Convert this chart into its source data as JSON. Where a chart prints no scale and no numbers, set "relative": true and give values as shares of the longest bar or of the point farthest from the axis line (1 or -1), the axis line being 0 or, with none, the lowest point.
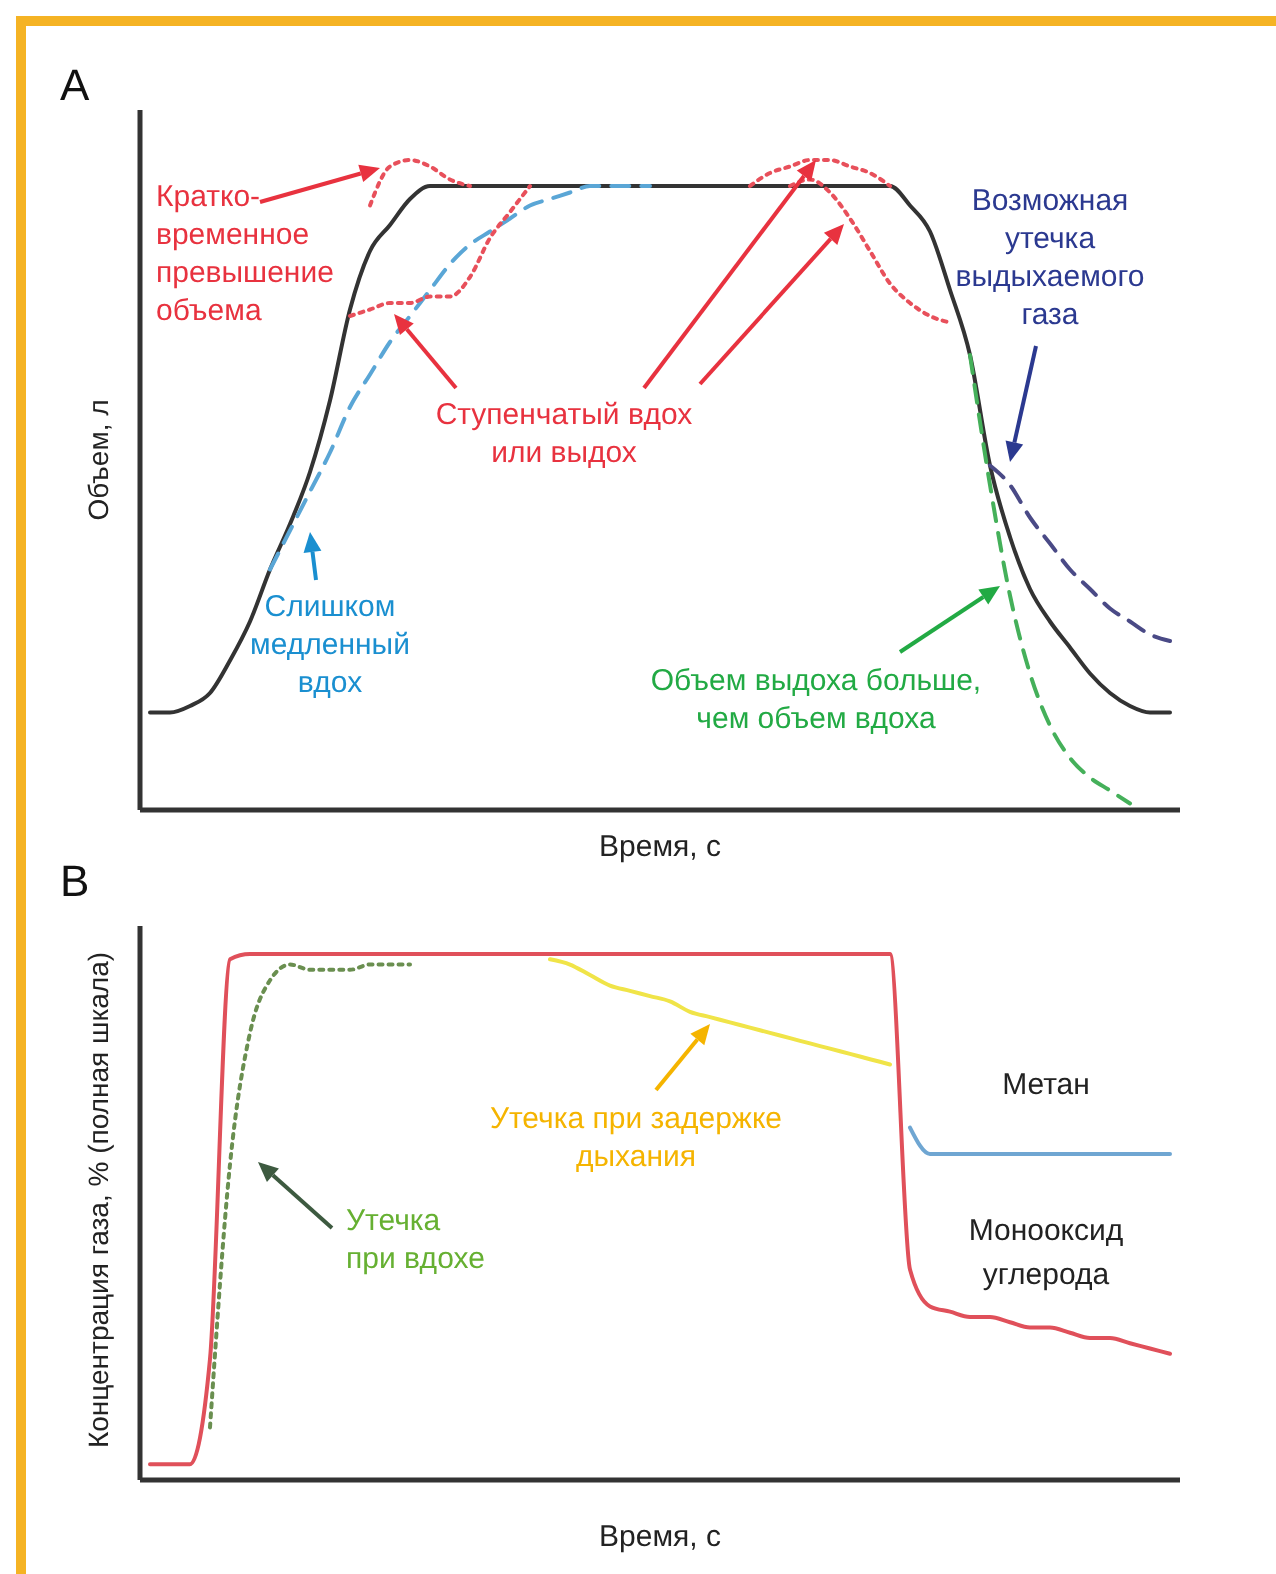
{
  "chart_data": [
    {
      "type": "line",
      "title": "А",
      "xlabel": "Время, с",
      "ylabel": "Объем, л",
      "relative": true,
      "tick_labels": false,
      "categories": [
        null,
        null,
        null,
        null,
        null,
        null,
        null,
        null,
        null,
        null,
        null,
        null,
        null,
        null,
        null,
        null,
        null,
        null,
        null,
        null,
        null,
        null,
        null,
        null,
        null,
        null,
        null,
        null,
        null,
        null,
        null,
        null,
        null,
        null,
        null,
        null,
        null,
        null,
        null,
        null,
        null,
        null,
        null,
        null,
        null,
        null,
        null,
        null,
        null,
        null,
        null,
        null
      ],
      "series": [
        {
          "color": "#333333",
          "line_style": "solid",
          "values": [
            0.15,
            0.15,
            0.16,
            0.18,
            0.23,
            0.29,
            0.37,
            0.44,
            0.52,
            0.63,
            0.77,
            0.86,
            0.9,
            0.94,
            0.96,
            0.96,
            0.96,
            0.96,
            0.96,
            0.96,
            0.96,
            0.96,
            0.96,
            0.96,
            0.96,
            0.96,
            0.96,
            0.96,
            0.96,
            0.96,
            0.96,
            0.96,
            0.96,
            0.96,
            0.96,
            0.96,
            0.96,
            0.96,
            0.93,
            0.89,
            0.8,
            0.7,
            0.53,
            0.42,
            0.34,
            0.29,
            0.25,
            0.21,
            0.18,
            0.16,
            0.15,
            0.15
          ]
        },
        {
          "color": "#5aa6d6",
          "line_style": "dashed",
          "values": [
            null,
            null,
            null,
            null,
            null,
            null,
            0.37,
            0.43,
            0.49,
            0.55,
            0.62,
            0.67,
            0.72,
            0.76,
            0.8,
            0.84,
            0.87,
            0.89,
            0.91,
            0.93,
            0.94,
            0.95,
            0.96,
            0.96,
            0.96,
            0.96,
            null,
            null,
            null,
            null,
            null,
            null,
            null,
            null,
            null,
            null,
            null,
            null,
            null,
            null,
            null,
            null,
            null,
            null,
            null,
            null,
            null,
            null,
            null,
            null,
            null,
            null
          ]
        },
        {
          "color": "#e8505b",
          "line_style": "dotted",
          "values": [
            null,
            null,
            null,
            null,
            null,
            null,
            null,
            null,
            null,
            null,
            null,
            0.93,
            0.99,
            1,
            0.99,
            0.97,
            0.96,
            null,
            null,
            null,
            null,
            null,
            null,
            null,
            null,
            null,
            null,
            null,
            null,
            null,
            null,
            null,
            null,
            null,
            null,
            null,
            null,
            null,
            null,
            null,
            null,
            null,
            null,
            null,
            null,
            null,
            null,
            null,
            null,
            null,
            null,
            null
          ]
        },
        {
          "color": "#e8505b",
          "line_style": "dotted",
          "values": [
            null,
            null,
            null,
            null,
            null,
            null,
            null,
            null,
            null,
            null,
            0.76,
            0.77,
            0.78,
            0.78,
            0.79,
            0.79,
            0.82,
            0.88,
            0.92,
            0.96,
            null,
            null,
            null,
            null,
            null,
            null,
            null,
            null,
            null,
            null,
            null,
            null,
            null,
            null,
            null,
            null,
            null,
            null,
            null,
            null,
            null,
            null,
            null,
            null,
            null,
            null,
            null,
            null,
            null,
            null,
            null,
            null
          ]
        },
        {
          "color": "#e8505b",
          "line_style": "dotted",
          "values": [
            null,
            null,
            null,
            null,
            null,
            null,
            null,
            null,
            null,
            null,
            null,
            null,
            null,
            null,
            null,
            null,
            null,
            null,
            null,
            null,
            null,
            null,
            null,
            null,
            null,
            null,
            null,
            null,
            null,
            null,
            0.96,
            0.98,
            0.99,
            1,
            1,
            0.99,
            0.98,
            0.96,
            null,
            null,
            null,
            null,
            null,
            null,
            null,
            null,
            null,
            null,
            null,
            null,
            null,
            null
          ]
        },
        {
          "color": "#e8505b",
          "line_style": "dotted",
          "values": [
            null,
            null,
            null,
            null,
            null,
            null,
            null,
            null,
            null,
            null,
            null,
            null,
            null,
            null,
            null,
            null,
            null,
            null,
            null,
            null,
            null,
            null,
            null,
            null,
            null,
            null,
            null,
            null,
            null,
            null,
            null,
            null,
            0.96,
            0.97,
            0.95,
            0.91,
            0.86,
            0.81,
            0.78,
            0.76,
            0.75,
            null,
            null,
            null,
            null,
            null,
            null,
            null,
            null,
            null,
            null,
            null
          ]
        },
        {
          "color": "#4a4a86",
          "line_style": "dashed",
          "values": [
            null,
            null,
            null,
            null,
            null,
            null,
            null,
            null,
            null,
            null,
            null,
            null,
            null,
            null,
            null,
            null,
            null,
            null,
            null,
            null,
            null,
            null,
            null,
            null,
            null,
            null,
            null,
            null,
            null,
            null,
            null,
            null,
            null,
            null,
            null,
            null,
            null,
            null,
            null,
            null,
            null,
            null,
            0.53,
            0.5,
            0.45,
            0.41,
            0.37,
            0.34,
            0.31,
            0.29,
            0.27,
            0.26
          ]
        },
        {
          "color": "#45b05a",
          "line_style": "dashed",
          "values": [
            null,
            null,
            null,
            null,
            null,
            null,
            null,
            null,
            null,
            null,
            null,
            null,
            null,
            null,
            null,
            null,
            null,
            null,
            null,
            null,
            null,
            null,
            null,
            null,
            null,
            null,
            null,
            null,
            null,
            null,
            null,
            null,
            null,
            null,
            null,
            null,
            null,
            null,
            null,
            null,
            null,
            0.7,
            0.5,
            0.33,
            0.21,
            0.13,
            0.08,
            0.05,
            0.03,
            0.01,
            null,
            null
          ]
        }
      ],
      "annotations": [
        "Кратко-\nвременное\nпревышение\nобъема",
        "Ступенчатый вдох\nили выдох",
        "Слишком\nмедленный\nвдох",
        "Возможная\nутечка\nвыдыхаемого\nгаза",
        "Объем выдоха больше,\nчем объем вдоха"
      ]
    },
    {
      "type": "line",
      "title": "B",
      "xlabel": "Время, с",
      "ylabel": "Концентрация газа, % (полная шкала)",
      "relative": true,
      "tick_labels": false,
      "categories": [
        null,
        null,
        null,
        null,
        null,
        null,
        null,
        null,
        null,
        null,
        null,
        null,
        null,
        null,
        null,
        null,
        null,
        null,
        null,
        null,
        null,
        null,
        null,
        null,
        null,
        null,
        null,
        null,
        null,
        null,
        null,
        null,
        null,
        null,
        null,
        null,
        null,
        null,
        null,
        null,
        null,
        null,
        null,
        null,
        null,
        null,
        null,
        null,
        null,
        null,
        null,
        null
      ],
      "series": [
        {
          "name": "Монооксид углерода",
          "color": "#e0505a",
          "line_style": "solid",
          "values": [
            0.03,
            0.03,
            0.03,
            0.23,
            0.99,
            1,
            1,
            1,
            1,
            1,
            1,
            1,
            1,
            1,
            1,
            1,
            1,
            1,
            1,
            1,
            1,
            1,
            1,
            1,
            1,
            1,
            1,
            1,
            1,
            1,
            1,
            1,
            1,
            1,
            1,
            1,
            1,
            1,
            0.4,
            0.33,
            0.32,
            0.31,
            0.31,
            0.3,
            0.29,
            0.29,
            0.28,
            0.27,
            0.27,
            0.26,
            0.25,
            0.24
          ]
        },
        {
          "name": "Метан",
          "color": "#6fa6d2",
          "line_style": "solid",
          "values": [
            null,
            null,
            null,
            null,
            null,
            null,
            null,
            null,
            null,
            null,
            null,
            null,
            null,
            null,
            null,
            null,
            null,
            null,
            null,
            null,
            null,
            null,
            null,
            null,
            null,
            null,
            null,
            null,
            null,
            null,
            null,
            null,
            null,
            null,
            null,
            null,
            null,
            null,
            0.67,
            0.62,
            0.62,
            0.62,
            0.62,
            0.62,
            0.62,
            0.62,
            0.62,
            0.62,
            0.62,
            0.62,
            0.62,
            0.62
          ]
        },
        {
          "color": "#6a8f50",
          "line_style": "dotted",
          "values": [
            null,
            null,
            null,
            0.1,
            0.6,
            0.85,
            0.95,
            0.98,
            0.97,
            0.97,
            0.97,
            0.98,
            0.98,
            0.98,
            null,
            null,
            null,
            null,
            null,
            null,
            null,
            null,
            null,
            null,
            null,
            null,
            null,
            null,
            null,
            null,
            null,
            null,
            null,
            null,
            null,
            null,
            null,
            null,
            null,
            null,
            null,
            null,
            null,
            null,
            null,
            null,
            null,
            null,
            null,
            null,
            null,
            null
          ]
        },
        {
          "color": "#f0e448",
          "line_style": "solid",
          "values": [
            null,
            null,
            null,
            null,
            null,
            null,
            null,
            null,
            null,
            null,
            null,
            null,
            null,
            null,
            null,
            null,
            null,
            null,
            null,
            null,
            0.99,
            0.98,
            0.96,
            0.94,
            0.93,
            0.92,
            0.91,
            0.89,
            0.88,
            0.87,
            0.86,
            0.85,
            0.84,
            0.83,
            0.82,
            0.81,
            0.8,
            0.79,
            null,
            null,
            null,
            null,
            null,
            null,
            null,
            null,
            null,
            null,
            null,
            null,
            null,
            null
          ]
        }
      ],
      "annotations": [
        "Утечка при задержке\nдыхания",
        "Утечка\nпри вдохе"
      ]
    }
  ]
}
